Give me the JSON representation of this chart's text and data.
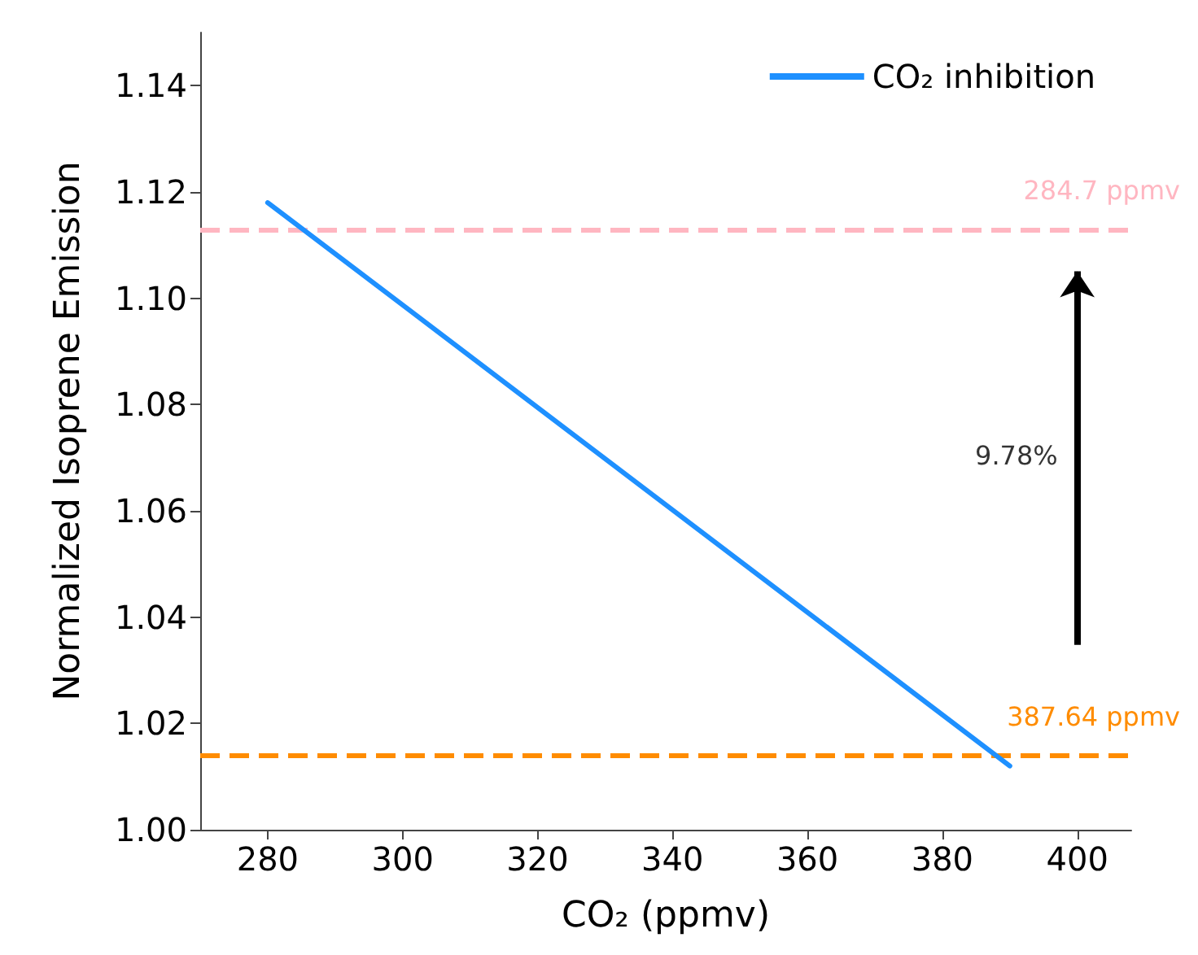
{
  "chart_data": {
    "type": "line",
    "xlabel": "CO₂ (ppmv)",
    "ylabel": "Normalized Isoprene Emission",
    "x": [
      280,
      390
    ],
    "series": [
      {
        "name": "CO₂ inhibition",
        "color": "#1e90ff",
        "values": [
          1.118,
          1.012
        ]
      }
    ],
    "xlim": [
      270,
      408
    ],
    "xticks": [
      280,
      300,
      320,
      340,
      360,
      380,
      400
    ],
    "ylim": [
      1.0,
      1.15
    ],
    "yticks": [
      {
        "value": 1.0,
        "label": "1.00"
      },
      {
        "value": 1.02,
        "label": "1.02"
      },
      {
        "value": 1.04,
        "label": "1.04"
      },
      {
        "value": 1.06,
        "label": "1.06"
      },
      {
        "value": 1.08,
        "label": "1.08"
      },
      {
        "value": 1.1,
        "label": "1.10"
      },
      {
        "value": 1.12,
        "label": "1.12"
      },
      {
        "value": 1.14,
        "label": "1.14"
      }
    ],
    "ref_lines": [
      {
        "axis": "y",
        "value": 1.113,
        "label": "284.7 ppmv",
        "color": "#ffb6c1",
        "line_style": "dashed"
      },
      {
        "axis": "y",
        "value": 1.014,
        "label": "387.64 ppmv",
        "color": "#ff8c00",
        "line_style": "dashed"
      }
    ],
    "annotations": [
      "9.78%"
    ],
    "grid": false,
    "legend": "top right",
    "line_style": "solid",
    "marker": "none"
  }
}
